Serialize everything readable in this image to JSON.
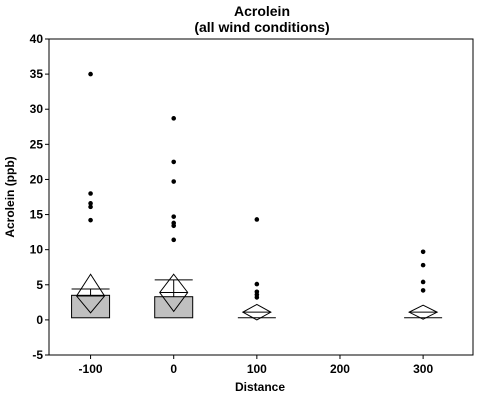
{
  "chart_data": {
    "type": "box",
    "title": "Acrolein",
    "subtitle": "(all wind conditions)",
    "xlabel": "Distance",
    "ylabel": "Acrolein (ppb)",
    "x_ticks": [
      -100,
      0,
      100,
      200,
      300
    ],
    "x_range": [
      -150,
      360
    ],
    "y_ticks": [
      -5,
      0,
      5,
      10,
      15,
      20,
      25,
      30,
      35,
      40
    ],
    "ylim": [
      -5,
      40
    ],
    "grid": false,
    "legend": "none",
    "colors": {
      "box_fill": "#c0c0c0",
      "stroke": "#000000",
      "point": "#000000",
      "diamond_fill": "#ffffff"
    },
    "groups": [
      {
        "x": -100,
        "box": [
          0.3,
          3.5
        ],
        "whisker_high": 4.4,
        "mean_diamond": [
          1.0,
          3.4,
          6.5
        ],
        "outliers": [
          14.2,
          16.1,
          16.6,
          18.0,
          35.0
        ]
      },
      {
        "x": 0,
        "box": [
          0.3,
          3.3
        ],
        "whisker_high": 5.7,
        "mean_diamond": [
          1.2,
          3.9,
          6.5
        ],
        "outliers": [
          11.4,
          13.4,
          13.8,
          14.7,
          19.7,
          22.5,
          28.7
        ]
      },
      {
        "x": 100,
        "box": null,
        "baseline": 0.3,
        "mean_diamond": [
          0.0,
          1.1,
          2.2
        ],
        "outliers": [
          3.2,
          3.6,
          4.0,
          5.1,
          14.3
        ]
      },
      {
        "x": 300,
        "box": null,
        "baseline": 0.3,
        "mean_diamond": [
          0.1,
          1.1,
          2.1
        ],
        "outliers": [
          4.2,
          5.4,
          7.8,
          9.7
        ]
      }
    ]
  }
}
